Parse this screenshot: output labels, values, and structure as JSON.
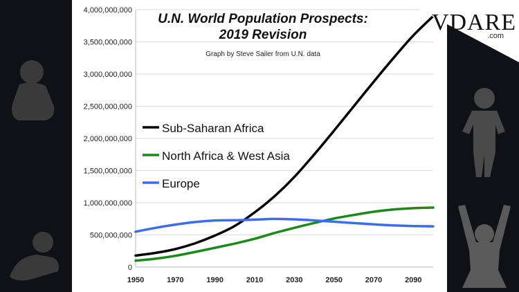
{
  "brand": {
    "name": "VDARE",
    "domain": ".com"
  },
  "chart_data": {
    "type": "line",
    "title": "U.N. World Population Prospects:",
    "subtitle": "2019 Revision",
    "credit": "Graph by Steve Sailer from U.N. data",
    "xlabel": "",
    "ylabel": "",
    "xlim": [
      1950,
      2100
    ],
    "ylim": [
      0,
      4000000000
    ],
    "x_ticks": [
      1950,
      1970,
      1990,
      2010,
      2030,
      2050,
      2070,
      2090
    ],
    "x_tick_labels": [
      "1950",
      "1970",
      "1990",
      "2010",
      "2030",
      "2050",
      "2070",
      "2090"
    ],
    "y_ticks": [
      0,
      500000000,
      1000000000,
      1500000000,
      2000000000,
      2500000000,
      3000000000,
      3500000000,
      4000000000
    ],
    "y_tick_labels": [
      "0",
      "500,000,000",
      "1,000,000,000",
      "1,500,000,000",
      "2,000,000,000",
      "2,500,000,000",
      "3,000,000,000",
      "3,500,000,000",
      "4,000,000,000"
    ],
    "grid": true,
    "legend_position": "left",
    "x": [
      1950,
      1960,
      1970,
      1980,
      1990,
      2000,
      2010,
      2020,
      2030,
      2040,
      2050,
      2060,
      2070,
      2080,
      2090,
      2100
    ],
    "series": [
      {
        "name": "Sub-Saharan Africa",
        "color": "#000000",
        "values": [
          180000000,
          220000000,
          280000000,
          370000000,
          490000000,
          640000000,
          850000000,
          1100000000,
          1400000000,
          1750000000,
          2120000000,
          2500000000,
          2880000000,
          3250000000,
          3600000000,
          3900000000
        ]
      },
      {
        "name": "North Africa & West Asia",
        "color": "#178a17",
        "values": [
          100000000,
          130000000,
          175000000,
          235000000,
          300000000,
          365000000,
          440000000,
          530000000,
          610000000,
          685000000,
          755000000,
          810000000,
          860000000,
          895000000,
          915000000,
          925000000
        ]
      },
      {
        "name": "Europe",
        "color": "#3a6cf4",
        "values": [
          550000000,
          610000000,
          660000000,
          700000000,
          725000000,
          728000000,
          738000000,
          748000000,
          742000000,
          726000000,
          705000000,
          684000000,
          664000000,
          648000000,
          638000000,
          633000000
        ]
      }
    ]
  }
}
